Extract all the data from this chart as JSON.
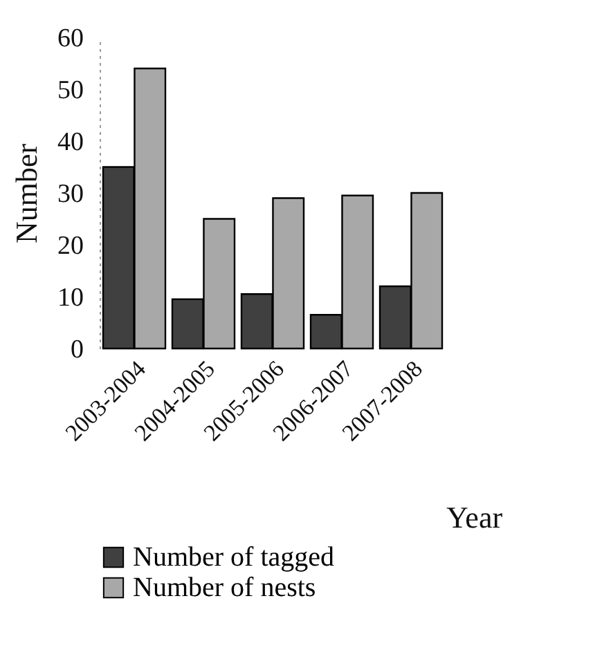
{
  "chart_data": {
    "type": "bar",
    "xlabel": "Year",
    "ylabel": "Number",
    "categories": [
      "2003-2004",
      "2004-2005",
      "2005-2006",
      "2006-2007",
      "2007-2008"
    ],
    "series": [
      {
        "name": "Number of tagged",
        "color": "#404040",
        "values": [
          35,
          9.5,
          10.5,
          6.5,
          12
        ]
      },
      {
        "name": "Number of nests",
        "color": "#a8a8a8",
        "values": [
          54,
          25,
          29,
          29.5,
          30
        ]
      }
    ],
    "ylim": [
      0,
      60
    ],
    "yticks": [
      0,
      10,
      20,
      30,
      40,
      50,
      60
    ],
    "grid": false,
    "legend": "bottom"
  }
}
